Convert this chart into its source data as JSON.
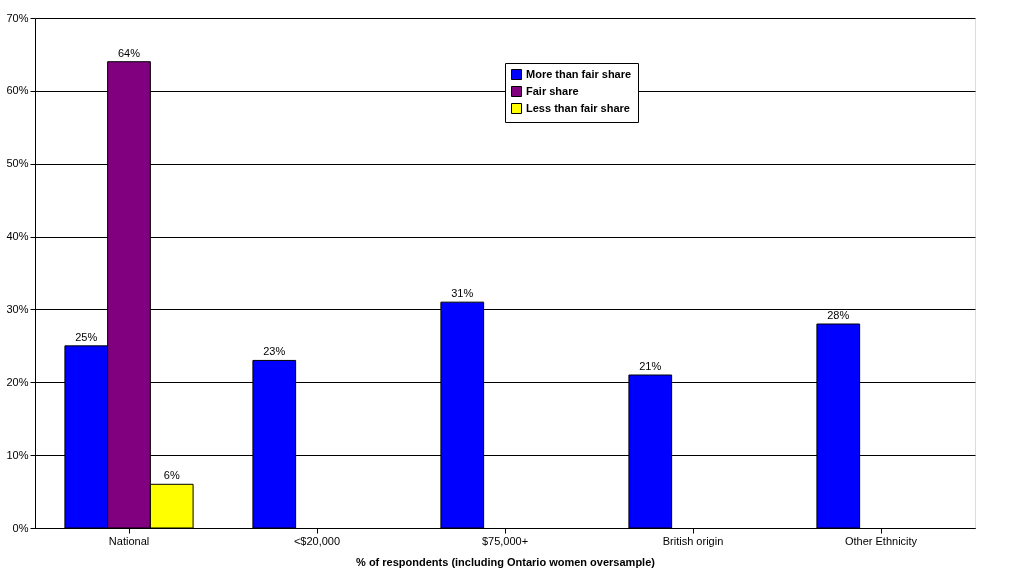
{
  "chart_data": {
    "type": "bar",
    "xlabel": "% of respondents (including Ontario women oversample)",
    "categories": [
      "National",
      "<$20,000",
      "$75,000+",
      "British origin",
      "Other Ethnicity"
    ],
    "series": [
      {
        "name": "More than fair share",
        "color": "#0000ff",
        "values": [
          25,
          23,
          31,
          21,
          28
        ],
        "value_labels": [
          "25%",
          "23%",
          "31%",
          "21%",
          "28%"
        ]
      },
      {
        "name": "Fair share",
        "color": "#800080",
        "values": [
          64,
          null,
          null,
          null,
          null
        ],
        "value_labels": [
          "64%",
          null,
          null,
          null,
          null
        ]
      },
      {
        "name": "Less than fair share",
        "color": "#ffff00",
        "values": [
          6,
          null,
          null,
          null,
          null
        ],
        "value_labels": [
          "6%",
          null,
          null,
          null,
          null
        ]
      }
    ],
    "ylim": [
      0,
      70
    ],
    "yticks": [
      {
        "value": 0,
        "label": "0%"
      },
      {
        "value": 10,
        "label": "10%"
      },
      {
        "value": 20,
        "label": "20%"
      },
      {
        "value": 30,
        "label": "30%"
      },
      {
        "value": 40,
        "label": "40%"
      },
      {
        "value": 50,
        "label": "50%"
      },
      {
        "value": 60,
        "label": "60%"
      },
      {
        "value": 70,
        "label": "70%"
      }
    ],
    "grid": "y",
    "legend": "top right"
  }
}
